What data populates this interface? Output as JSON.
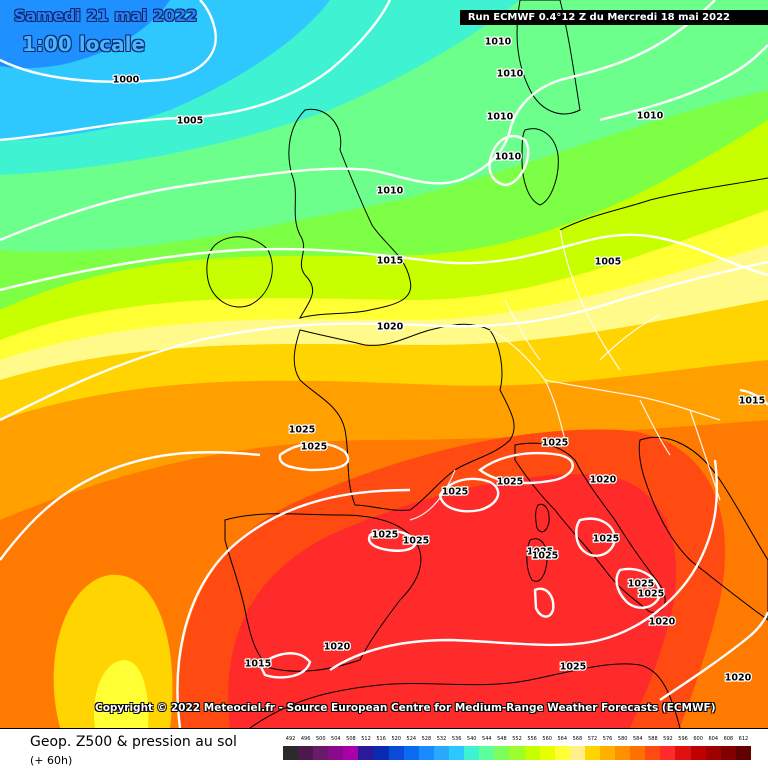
{
  "header": {
    "date": "Samedi 21 mai 2022",
    "time": "1:00 locale",
    "run": "Run ECMWF 0.4°12 Z du Mercredi 18 mai 2022"
  },
  "map": {
    "isobars": [
      {
        "label": "1000"
      },
      {
        "label": "1005"
      },
      {
        "label": "1010"
      },
      {
        "label": "1010"
      },
      {
        "label": "1010"
      },
      {
        "label": "1010"
      },
      {
        "label": "1010"
      },
      {
        "label": "1010"
      },
      {
        "label": "1005"
      },
      {
        "label": "1015"
      },
      {
        "label": "1020"
      },
      {
        "label": "1015"
      },
      {
        "label": "1025"
      },
      {
        "label": "1025"
      },
      {
        "label": "1025"
      },
      {
        "label": "1025"
      },
      {
        "label": "1025"
      },
      {
        "label": "1020"
      },
      {
        "label": "1025"
      },
      {
        "label": "1025"
      },
      {
        "label": "1025"
      },
      {
        "label": "1025"
      },
      {
        "label": "1025"
      },
      {
        "label": "1025"
      },
      {
        "label": "1025"
      },
      {
        "label": "1020"
      },
      {
        "label": "1015"
      },
      {
        "label": "1025"
      },
      {
        "label": "1020"
      },
      {
        "label": "1020"
      }
    ],
    "background_colors": {
      "deep_blue": "#1e90ff",
      "light_blue": "#2ec8ff",
      "cyan": "#3ef2d2",
      "mint": "#6dff8c",
      "green": "#7cff44",
      "lime": "#c8ff00",
      "yellow": "#ffff33",
      "pale_yellow": "#fffa8a",
      "gold": "#ffd400",
      "orange": "#ffa000",
      "dark_orange": "#ff7a00",
      "red_orange": "#ff4a12",
      "red": "#ff2a2a"
    },
    "isobar_color": "#ffffff",
    "coastline_color": "#000000",
    "border_color": "#ffffff"
  },
  "footer": {
    "title": "Geop. Z500 & pression au sol",
    "subtitle": "(+ 60h)",
    "copyright": "Copyright © 2022 Meteociel.fr - Source European Centre for Medium-Range Weather Forecasts (ECMWF)"
  },
  "legend": {
    "ticks": [
      "492",
      "496",
      "500",
      "504",
      "508",
      "512",
      "516",
      "520",
      "524",
      "528",
      "532",
      "536",
      "540",
      "544",
      "548",
      "552",
      "556",
      "560",
      "564",
      "568",
      "572",
      "576",
      "580",
      "584",
      "588",
      "592",
      "596",
      "600",
      "604",
      "608",
      "612"
    ],
    "colors": [
      "#2a2a2a",
      "#4a1a4a",
      "#6a1a6a",
      "#8a0a8a",
      "#aa00aa",
      "#2a1a9a",
      "#0a2ab4",
      "#0a4ad4",
      "#0a6af4",
      "#1a8aff",
      "#2aaaff",
      "#2ac8ff",
      "#3ef2d2",
      "#5cff9c",
      "#7cff5c",
      "#9cff2c",
      "#c8ff00",
      "#e8ff00",
      "#ffff33",
      "#fff08a",
      "#ffd400",
      "#ffb000",
      "#ff9000",
      "#ff7000",
      "#ff4a12",
      "#ff2a2a",
      "#e01010",
      "#c00000",
      "#a00000",
      "#800000",
      "#600000"
    ]
  }
}
